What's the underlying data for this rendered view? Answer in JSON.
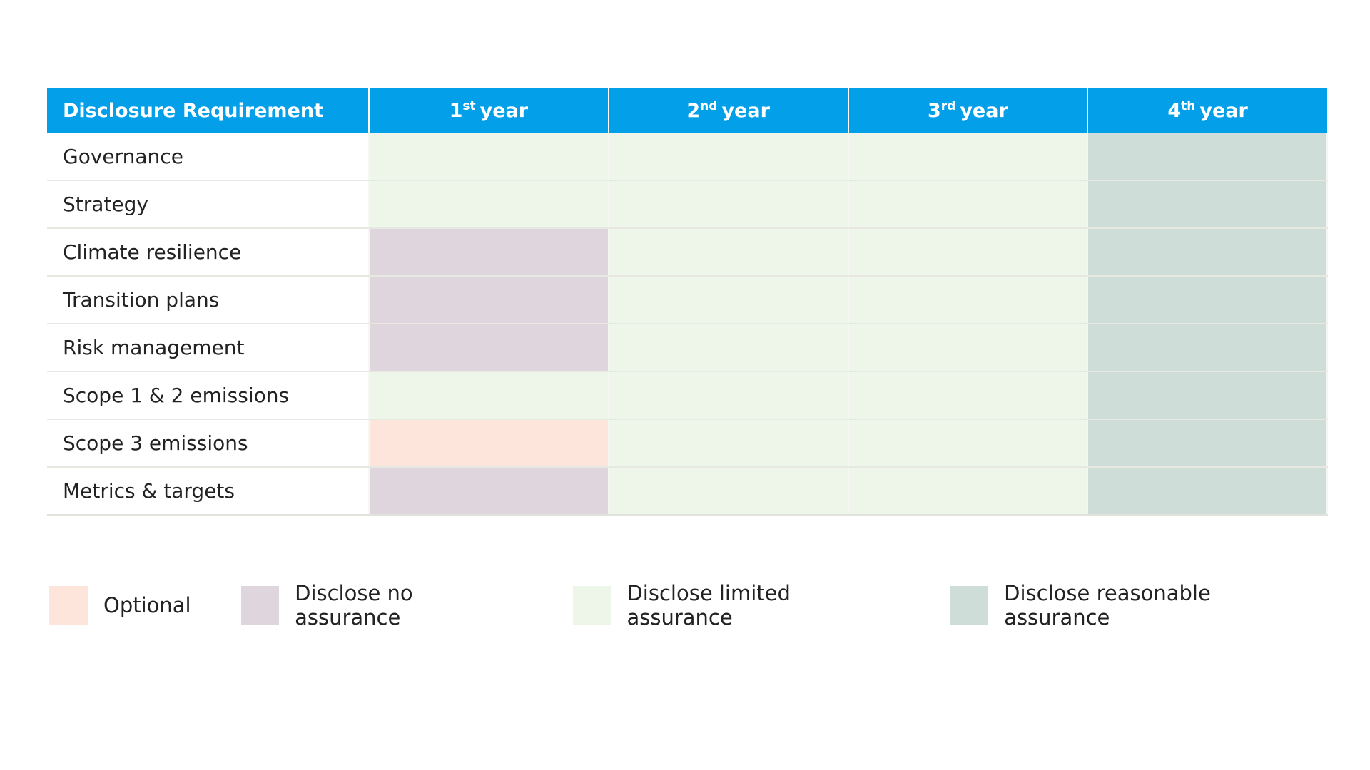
{
  "table": {
    "header": {
      "first": "Disclosure Requirement",
      "years": [
        [
          "1",
          "st",
          "year"
        ],
        [
          "2",
          "nd",
          "year"
        ],
        [
          "3",
          "rd",
          "year"
        ],
        [
          "4",
          "th",
          "year"
        ]
      ]
    },
    "rows": [
      {
        "label": "Governance",
        "colors": [
          "#eef6ea",
          "#eef6ea",
          "#eef6ea",
          "#cfddd8"
        ]
      },
      {
        "label": "Strategy",
        "colors": [
          "#eef6ea",
          "#eef6ea",
          "#eef6ea",
          "#cfddd8"
        ]
      },
      {
        "label": "Climate resilience",
        "colors": [
          "#dfd5dc",
          "#eef6ea",
          "#eef6ea",
          "#cfddd8"
        ]
      },
      {
        "label": "Transition plans",
        "colors": [
          "#dfd5dc",
          "#eef6ea",
          "#eef6ea",
          "#cfddd8"
        ]
      },
      {
        "label": "Risk management",
        "colors": [
          "#dfd5dc",
          "#eef6ea",
          "#eef6ea",
          "#cfddd8"
        ]
      },
      {
        "label": "Scope 1 & 2 emissions",
        "colors": [
          "#eef6ea",
          "#eef6ea",
          "#eef6ea",
          "#cfddd8"
        ]
      },
      {
        "label": "Scope 3 emissions",
        "colors": [
          "#fde5dc",
          "#eef6ea",
          "#eef6ea",
          "#cfddd8"
        ]
      },
      {
        "label": "Metrics & targets",
        "colors": [
          "#dfd5dc",
          "#eef6ea",
          "#eef6ea",
          "#cfddd8"
        ]
      }
    ]
  },
  "legend": [
    {
      "label": "Optional",
      "color": "#fde5dc"
    },
    {
      "label": "Disclose no assurance",
      "color": "#dfd5dc"
    },
    {
      "label": "Disclose limited assurance",
      "color": "#eef6ea"
    },
    {
      "label": "Disclose reasonable assurance",
      "color": "#cfddd8"
    }
  ]
}
